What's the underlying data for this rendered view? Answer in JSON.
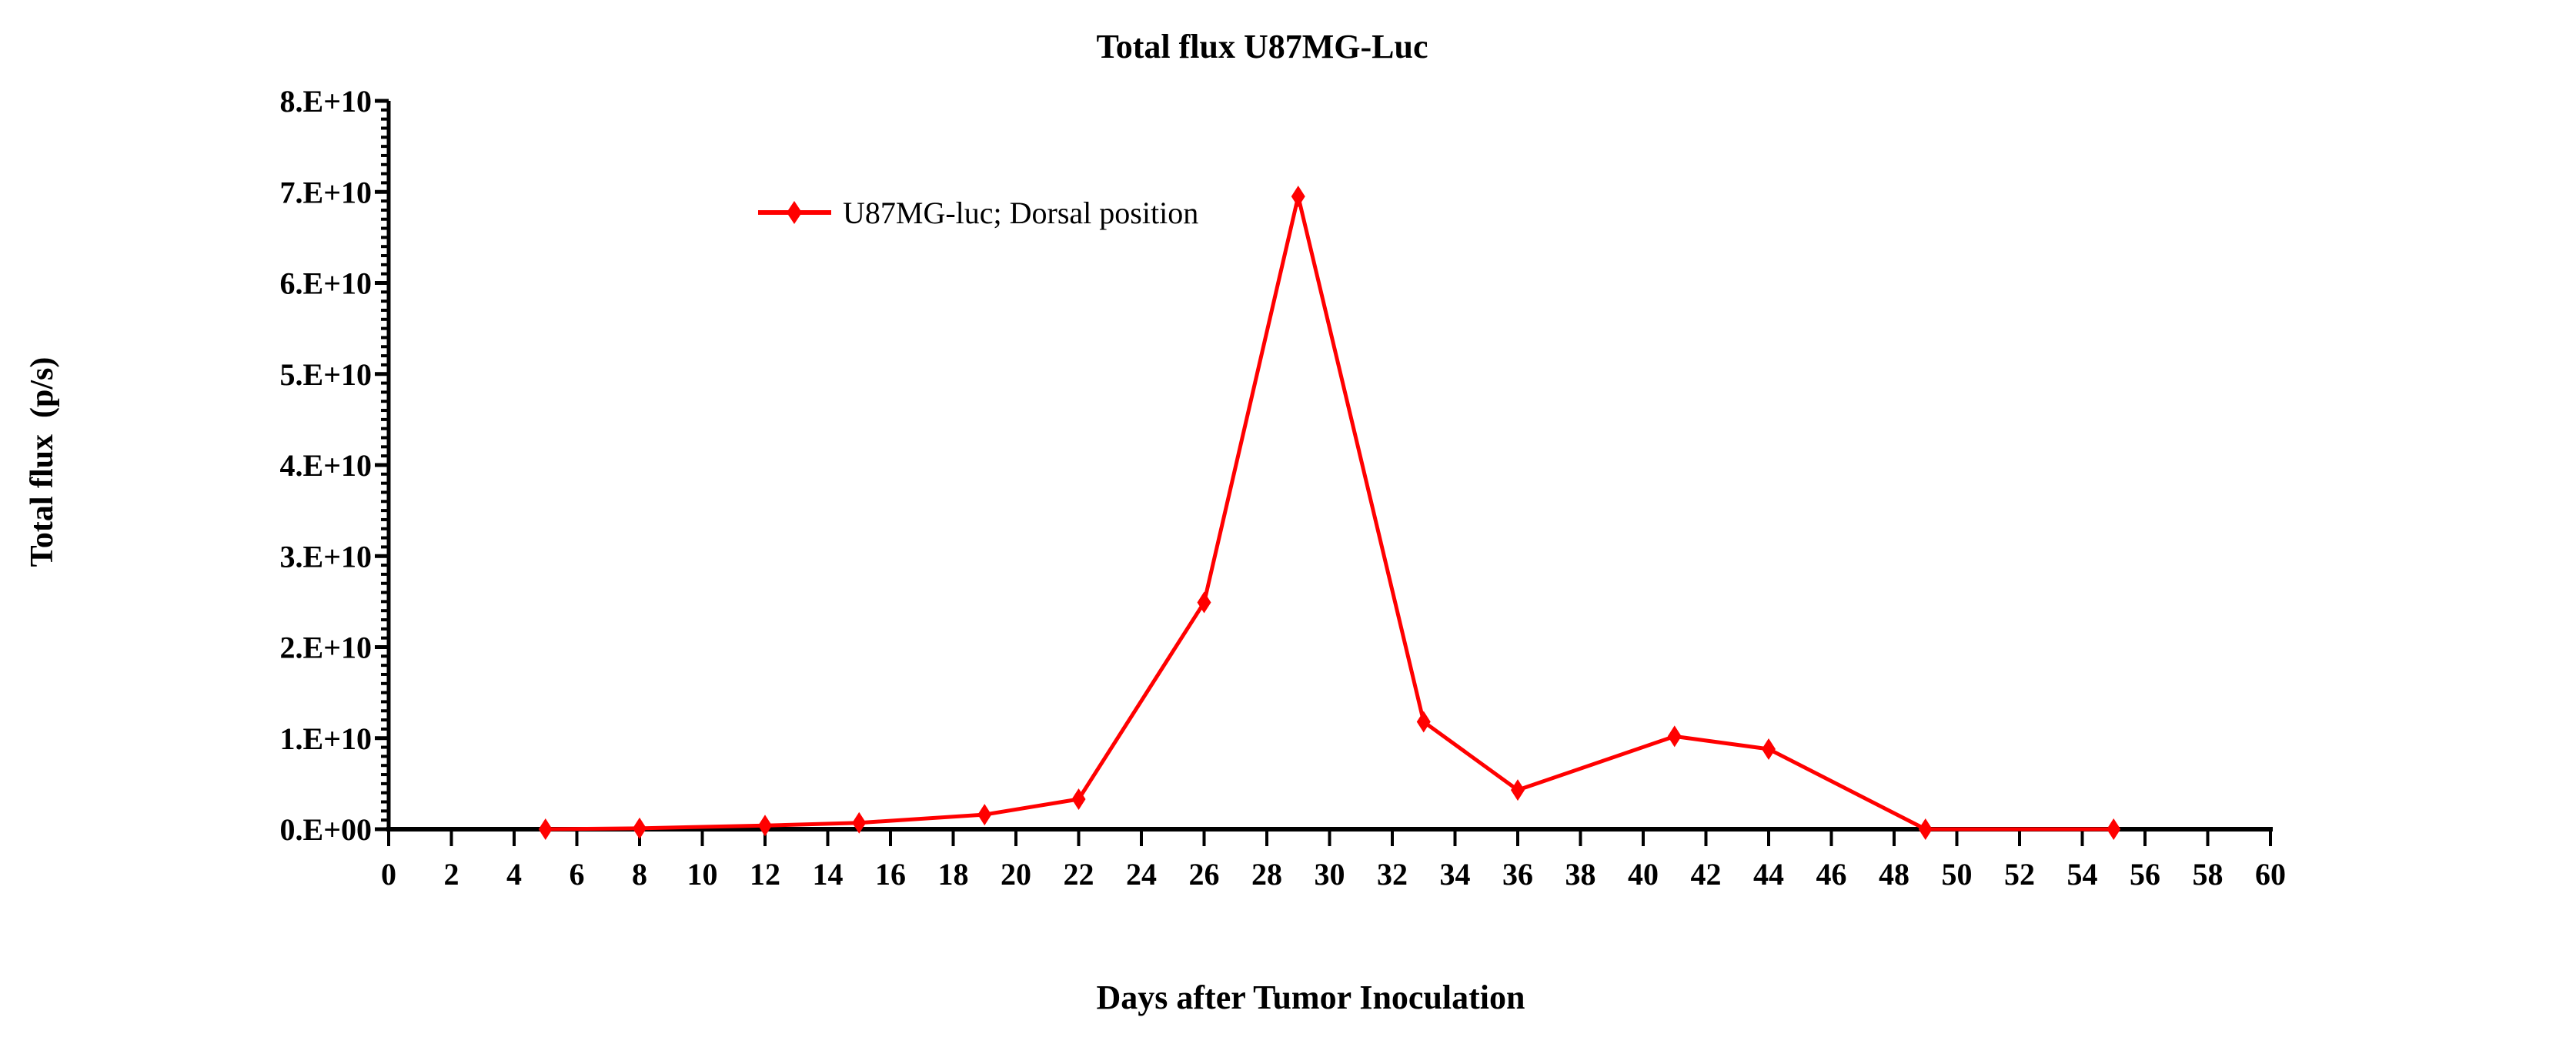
{
  "chart_data": {
    "type": "line",
    "title": "Total flux U87MG-Luc",
    "xlabel": "Days after Tumor Inoculation",
    "ylabel": "Total flux  (p/s)",
    "xlim": [
      0,
      60
    ],
    "ylim": [
      0,
      80000000000
    ],
    "x_ticks": [
      0,
      2,
      4,
      6,
      8,
      10,
      12,
      14,
      16,
      18,
      20,
      22,
      24,
      26,
      28,
      30,
      32,
      34,
      36,
      38,
      40,
      42,
      44,
      46,
      48,
      50,
      52,
      54,
      56,
      58,
      60
    ],
    "y_ticks": [
      0,
      10000000000,
      20000000000,
      30000000000,
      40000000000,
      50000000000,
      60000000000,
      70000000000,
      80000000000
    ],
    "y_tick_labels": [
      "0.E+00",
      "1.E+10",
      "2.E+10",
      "3.E+10",
      "4.E+10",
      "5.E+10",
      "6.E+10",
      "7.E+10",
      "8.E+10"
    ],
    "legend_placement": "top-center",
    "grid": false,
    "series": [
      {
        "name": "U87MG-luc; Dorsal position",
        "color": "#ff0000",
        "marker": "diamond",
        "x": [
          5,
          8,
          12,
          15,
          19,
          22,
          26,
          29,
          33,
          36,
          41,
          44,
          49,
          55
        ],
        "y": [
          0,
          100000000,
          400000000,
          700000000,
          1600000000,
          3300000000,
          24900000000,
          69500000000,
          11800000000,
          4300000000,
          10200000000,
          8800000000,
          0,
          0
        ]
      }
    ]
  }
}
